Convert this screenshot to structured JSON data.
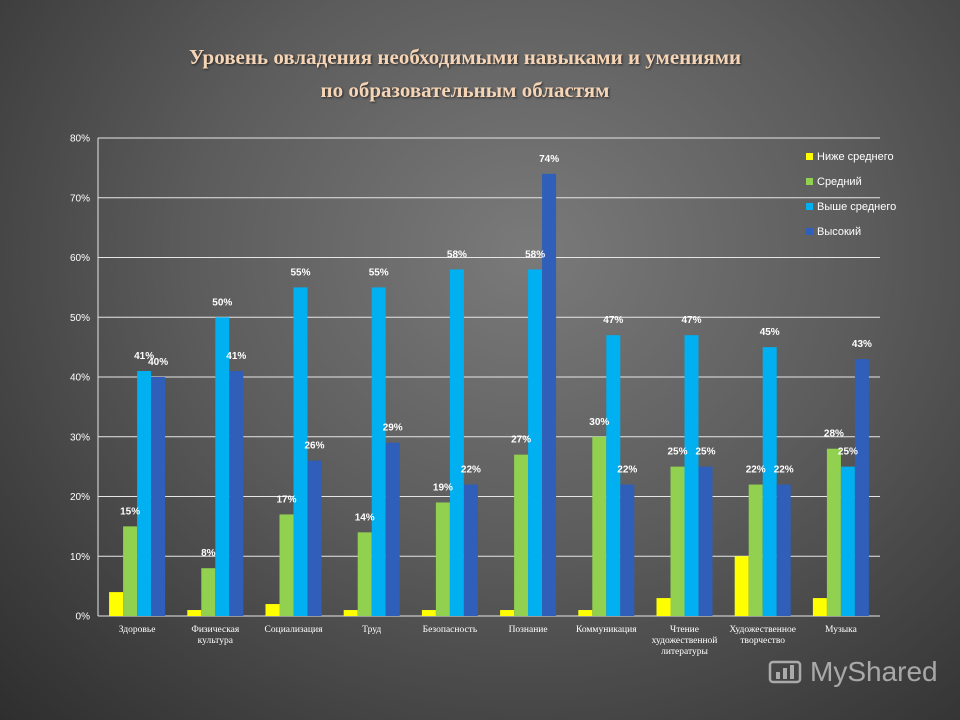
{
  "title_line1": "Уровень овладения необходимыми навыками и умениями",
  "title_line2": "по образовательным областям",
  "watermark": "MyShared",
  "colors": {
    "below_avg": "#ffff00",
    "avg": "#92d050",
    "above_avg": "#00b0f0",
    "high": "#2f5fb8",
    "axis_text": "#ffffff",
    "grid": "#e6e6e6"
  },
  "chart_data": {
    "type": "bar",
    "title": "Уровень овладения необходимыми навыками и умениями по образовательным областям",
    "ylim": [
      0,
      80
    ],
    "yticks": [
      0,
      10,
      20,
      30,
      40,
      50,
      60,
      70,
      80
    ],
    "ytick_labels": [
      "0%",
      "10%",
      "20%",
      "30%",
      "40%",
      "50%",
      "60%",
      "70%",
      "80%"
    ],
    "grid": true,
    "legend": "top-right",
    "categories": [
      [
        "Здоровье"
      ],
      [
        "Физическая",
        "культура"
      ],
      [
        "Социализация"
      ],
      [
        "Труд"
      ],
      [
        "Безопасность"
      ],
      [
        "Познание"
      ],
      [
        "Коммуникация"
      ],
      [
        "Чтение",
        "художественной",
        "литературы"
      ],
      [
        "Художественное",
        "творчество"
      ],
      [
        "Музыка"
      ]
    ],
    "series": [
      {
        "name": "Ниже среднего",
        "color": "#ffff00",
        "values": [
          4,
          1,
          2,
          1,
          1,
          1,
          1,
          3,
          10,
          3
        ],
        "labels": [
          "",
          "",
          "",
          "",
          "",
          "",
          "",
          "",
          "",
          ""
        ]
      },
      {
        "name": "Средний",
        "color": "#92d050",
        "values": [
          15,
          8,
          17,
          14,
          19,
          27,
          30,
          25,
          22,
          28
        ],
        "labels": [
          "15%",
          "8%",
          "17%",
          "14%",
          "19%",
          "27%",
          "30%",
          "25%",
          "22%",
          "28%"
        ]
      },
      {
        "name": "Выше среднего",
        "color": "#00b0f0",
        "values": [
          41,
          50,
          55,
          55,
          58,
          58,
          47,
          47,
          45,
          25
        ],
        "labels": [
          "41%",
          "50%",
          "55%",
          "55%",
          "58%",
          "58%",
          "47%",
          "47%",
          "45%",
          "25%"
        ]
      },
      {
        "name": "Высокий",
        "color": "#2f5fb8",
        "values": [
          40,
          41,
          26,
          29,
          22,
          74,
          22,
          25,
          22,
          43
        ],
        "labels": [
          "40%",
          "41%",
          "26%",
          "29%",
          "22%",
          "74%",
          "22%",
          "25%",
          "22%",
          "43%"
        ]
      }
    ]
  }
}
